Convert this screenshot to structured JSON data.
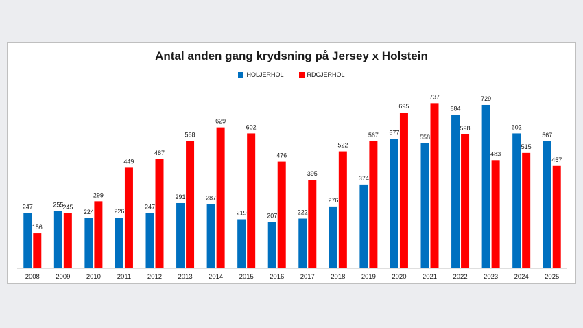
{
  "chart_data": {
    "type": "bar",
    "title": "Antal anden gang krydsning på Jersey x Holstein",
    "xlabel": "",
    "ylabel": "",
    "ylim": [
      0,
      800
    ],
    "grid": false,
    "legend_position": "top-center",
    "categories": [
      "2008",
      "2009",
      "2010",
      "2011",
      "2012",
      "2013",
      "2014",
      "2015",
      "2016",
      "2017",
      "2018",
      "2019",
      "2020",
      "2021",
      "2022",
      "2023",
      "2024",
      "2025"
    ],
    "series": [
      {
        "name": "HOLJERHOL",
        "color": "#0070c0",
        "values": [
          247,
          255,
          224,
          226,
          247,
          291,
          287,
          219,
          207,
          222,
          276,
          374,
          577,
          558,
          684,
          729,
          602,
          567
        ]
      },
      {
        "name": "RDCJERHOL",
        "color": "#ff0000",
        "values": [
          156,
          245,
          299,
          449,
          487,
          568,
          629,
          602,
          476,
          395,
          522,
          567,
          695,
          737,
          598,
          483,
          515,
          457
        ]
      }
    ]
  }
}
